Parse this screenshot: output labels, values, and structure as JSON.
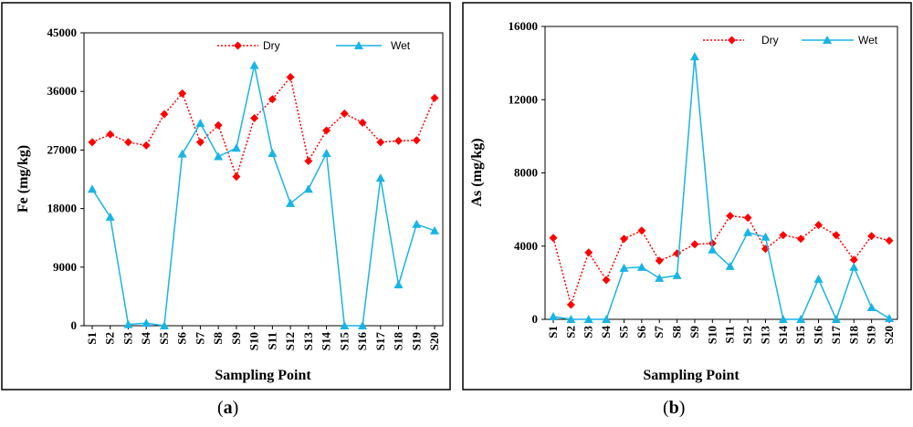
{
  "chart_data": [
    {
      "type": "line",
      "panel_label": "a",
      "xlabel": "Sampling Point",
      "ylabel": "Fe (mg/kg)",
      "categories": [
        "S1",
        "S2",
        "S3",
        "S4",
        "S5",
        "S6",
        "S7",
        "S8",
        "S9",
        "S10",
        "S11",
        "S12",
        "S13",
        "S14",
        "S15",
        "S16",
        "S17",
        "S18",
        "S19",
        "S20"
      ],
      "ylim": [
        0,
        45000
      ],
      "yticks": [
        0,
        9000,
        18000,
        27000,
        36000,
        45000
      ],
      "ytick_labels": [
        "0",
        "9000",
        "18000",
        "27000",
        "36000",
        "45000"
      ],
      "legend_position": "top-right",
      "series": [
        {
          "name": "Dry",
          "color": "#ff0000",
          "marker": "diamond",
          "line": "dotted",
          "values": [
            28200,
            29400,
            28200,
            27700,
            32500,
            35700,
            28200,
            30800,
            22900,
            31900,
            34800,
            38200,
            25300,
            30000,
            32600,
            31200,
            28200,
            28400,
            28500,
            35000
          ]
        },
        {
          "name": "Wet",
          "color": "#19b4e6",
          "marker": "triangle",
          "line": "solid",
          "values": [
            21000,
            16700,
            200,
            400,
            0,
            26400,
            31100,
            26000,
            27300,
            40000,
            26500,
            18800,
            21000,
            26500,
            0,
            0,
            22700,
            6300,
            15600,
            14600
          ]
        }
      ]
    },
    {
      "type": "line",
      "panel_label": "b",
      "xlabel": "Sampling Point",
      "ylabel": "As (mg/kg)",
      "categories": [
        "S1",
        "S2",
        "S3",
        "S4",
        "S5",
        "S6",
        "S7",
        "S8",
        "S9",
        "S10",
        "S11",
        "S12",
        "S13",
        "S14",
        "S15",
        "S16",
        "S17",
        "S18",
        "S19",
        "S20"
      ],
      "ylim": [
        0,
        16000
      ],
      "yticks": [
        0,
        4000,
        8000,
        12000,
        16000
      ],
      "ytick_labels": [
        "0",
        "4000",
        "8000",
        "12000",
        "16000"
      ],
      "legend_position": "top-right",
      "series": [
        {
          "name": "Dry",
          "color": "#ff0000",
          "marker": "diamond",
          "line": "dotted",
          "values": [
            4450,
            800,
            3650,
            2150,
            4400,
            4850,
            3200,
            3600,
            4100,
            4150,
            5650,
            5550,
            3850,
            4600,
            4400,
            5150,
            4600,
            3250,
            4550,
            4300
          ]
        },
        {
          "name": "Wet",
          "color": "#19b4e6",
          "marker": "triangle",
          "line": "solid",
          "values": [
            150,
            0,
            0,
            0,
            2800,
            2850,
            2250,
            2400,
            14350,
            3800,
            2900,
            4750,
            4500,
            0,
            0,
            2200,
            0,
            2850,
            650,
            50
          ]
        }
      ]
    }
  ]
}
